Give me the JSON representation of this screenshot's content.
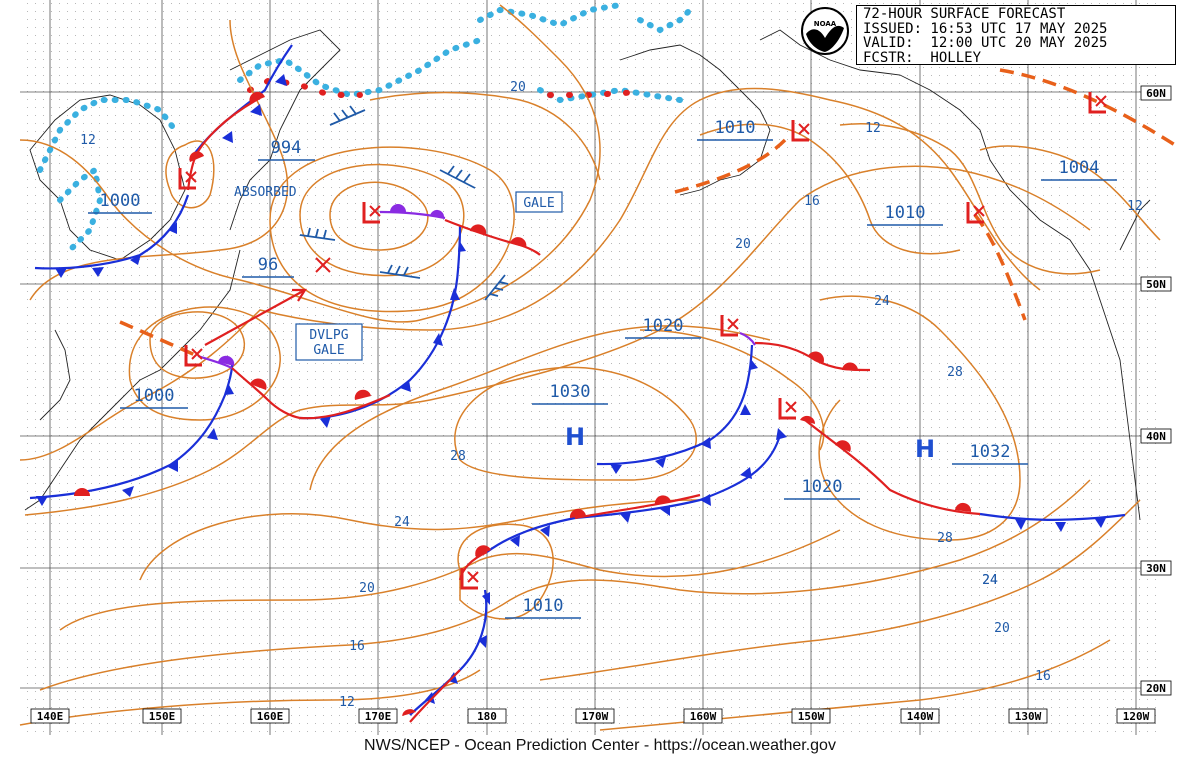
{
  "header": {
    "title": "72-HOUR SURFACE FORECAST",
    "issued": "ISSUED: 16:53 UTC 17 MAY 2025",
    "valid": "VALID:  12:00 UTC 20 MAY 2025",
    "forecaster": "FCSTR:  HOLLEY"
  },
  "logo": {
    "text": "NOAA",
    "color": "#1a4f9c"
  },
  "footer": "NWS/NCEP - Ocean Prediction Center - https://ocean.weather.gov",
  "longitude_labels": [
    "140E",
    "150E",
    "160E",
    "170E",
    "180",
    "170W",
    "160W",
    "150W",
    "140W",
    "130W",
    "120W"
  ],
  "latitude_labels": [
    "60N",
    "50N",
    "40N",
    "30N",
    "20N"
  ],
  "pressure_labels": [
    "994",
    "1000",
    "96",
    "1000",
    "1010",
    "1010",
    "1004",
    "1020",
    "1030",
    "1032",
    "1020",
    "1010"
  ],
  "isotherm_labels": [
    "12",
    "20",
    "12",
    "16",
    "12",
    "20",
    "24",
    "28",
    "28",
    "24",
    "24",
    "20",
    "16",
    "28",
    "24",
    "20",
    "16",
    "12"
  ],
  "boxed_labels": [
    "GALE",
    "DVLPG",
    "GALE"
  ],
  "text_labels": [
    "ABSORBED"
  ],
  "high_symbol": "H",
  "colors": {
    "isobar": "#d9802a",
    "cold_front": "#1a2fd8",
    "warm_front": "#e02020",
    "occluded": "#8a2be2",
    "low": "#e02020",
    "ice": "#3ab0e0",
    "text": "#1f5aa8"
  }
}
